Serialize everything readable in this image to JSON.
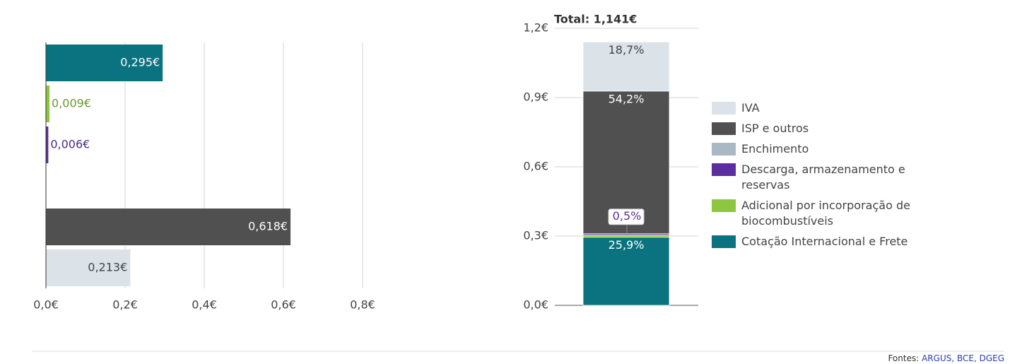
{
  "chart_data": [
    {
      "type": "hbar",
      "categories": [
        null,
        null,
        null,
        null,
        null,
        null
      ],
      "values": [
        0.295,
        0.009,
        0.006,
        0,
        0.618,
        0.213
      ],
      "value_labels": [
        "0,295€",
        "0,009€",
        "0,006€",
        null,
        "0,618€",
        "0,213€"
      ],
      "colors": [
        "#0b7380",
        "#8dc63f",
        "#5b2d9e",
        "#a9b8c3",
        "#505050",
        "#dbe2e8"
      ],
      "label_colors": [
        "#ffffff",
        "#6a9a2c",
        "#4b2a8a",
        null,
        "#ffffff",
        "#444444"
      ],
      "xlim": [
        0,
        0.8
      ],
      "xticks": [
        {
          "value": 0,
          "label": "0,0€"
        },
        {
          "value": 0.2,
          "label": "0,2€"
        },
        {
          "value": 0.4,
          "label": "0,4€"
        },
        {
          "value": 0.6,
          "label": "0,6€"
        },
        {
          "value": 0.8,
          "label": "0,8€"
        }
      ],
      "grid": true
    },
    {
      "type": "stacked-bar",
      "title": "Total: 1,141€",
      "categories": [
        null
      ],
      "series": [
        {
          "name": "Cotação Internacional e Frete",
          "color": "#0b7380",
          "values": [
            0.295
          ],
          "shares": [
            25.9
          ],
          "share_labels": [
            "25,9%"
          ]
        },
        {
          "name": "Adicional por incorporação de biocombustíveis",
          "color": "#8dc63f",
          "values": [
            0.009
          ],
          "shares": [
            null
          ],
          "share_labels": [
            null
          ]
        },
        {
          "name": "Descarga, armazenamento e reservas",
          "color": "#5b2d9e",
          "values": [
            0.006
          ],
          "shares": [
            0.5
          ],
          "share_labels": [
            "0,5%"
          ]
        },
        {
          "name": "Enchimento",
          "color": "#a9b8c3",
          "values": [
            0
          ],
          "shares": [
            null
          ],
          "share_labels": [
            null
          ]
        },
        {
          "name": "ISP e outros",
          "color": "#505050",
          "values": [
            0.618
          ],
          "shares": [
            54.2
          ],
          "share_labels": [
            "54,2%"
          ]
        },
        {
          "name": "IVA",
          "color": "#dbe2e8",
          "values": [
            0.213
          ],
          "shares": [
            18.7
          ],
          "share_labels": [
            "18,7%"
          ]
        }
      ],
      "ylim": [
        0,
        1.2
      ],
      "yticks": [
        {
          "value": 0,
          "label": "0,0€"
        },
        {
          "value": 0.3,
          "label": "0,3€"
        },
        {
          "value": 0.6,
          "label": "0,6€"
        },
        {
          "value": 0.9,
          "label": "0,9€"
        },
        {
          "value": 1.2,
          "label": "1,2€"
        }
      ],
      "grid": true,
      "legend": "right"
    }
  ],
  "footer": {
    "label": "Fontes:",
    "sources": "ARGUS, BCE, DGEG"
  }
}
